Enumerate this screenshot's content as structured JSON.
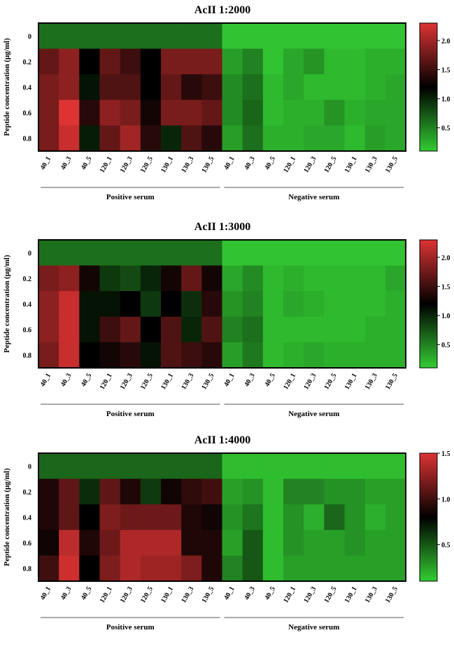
{
  "chart_data": [
    {
      "type": "heatmap",
      "title": "AcII 1:2000",
      "ylabel": "Peptide concentration (μg/ml)",
      "rows": [
        "0",
        "0.2",
        "0.4",
        "0.6",
        "0.8"
      ],
      "columns": [
        "40_1",
        "40_3",
        "40_5",
        "120_1",
        "120_3",
        "120_5",
        "130_1",
        "130_3",
        "130_5",
        "40_1",
        "40_3",
        "40_5",
        "120_1",
        "120_3",
        "120_5",
        "130_1",
        "130_3",
        "130_5"
      ],
      "groups": [
        "Positive serum",
        "Negative serum"
      ],
      "colormap": [
        "#33cc33",
        "#000000",
        "#dd3333"
      ],
      "clim": [
        0.1,
        2.3
      ],
      "cticks": [
        0.5,
        1.0,
        1.5,
        2.0
      ],
      "values": [
        [
          0.6,
          0.6,
          0.6,
          0.6,
          0.6,
          0.6,
          0.6,
          0.6,
          0.6,
          0.15,
          0.15,
          0.15,
          0.15,
          0.15,
          0.15,
          0.15,
          0.15,
          0.15
        ],
        [
          1.7,
          1.9,
          1.2,
          1.7,
          1.5,
          1.2,
          1.8,
          1.8,
          1.8,
          0.35,
          0.5,
          0.15,
          0.3,
          0.4,
          0.2,
          0.2,
          0.25,
          0.25
        ],
        [
          1.8,
          1.9,
          1.1,
          1.6,
          1.6,
          1.2,
          1.7,
          1.4,
          1.5,
          0.45,
          0.6,
          0.2,
          0.3,
          0.2,
          0.2,
          0.2,
          0.25,
          0.3
        ],
        [
          1.8,
          2.3,
          1.4,
          1.9,
          1.8,
          1.3,
          1.8,
          1.8,
          1.7,
          0.45,
          0.65,
          0.2,
          0.25,
          0.25,
          0.4,
          0.25,
          0.3,
          0.3
        ],
        [
          1.8,
          2.2,
          1.05,
          1.7,
          2.0,
          1.4,
          1.0,
          1.6,
          1.4,
          0.35,
          0.6,
          0.25,
          0.25,
          0.3,
          0.3,
          0.2,
          0.35,
          0.3
        ]
      ]
    },
    {
      "type": "heatmap",
      "title": "AcII 1:3000",
      "ylabel": "Peptide concentration (μg/ml)",
      "rows": [
        "0",
        "0.2",
        "0.4",
        "0.6",
        "0.8"
      ],
      "columns": [
        "40_1",
        "40_3",
        "40_5",
        "120_1",
        "120_3",
        "120_5",
        "130_1",
        "130_3",
        "130_5",
        "40_1",
        "40_3",
        "40_5",
        "120_1",
        "120_3",
        "120_5",
        "130_1",
        "130_3",
        "130_5"
      ],
      "groups": [
        "Positive serum",
        "Negative serum"
      ],
      "colormap": [
        "#33cc33",
        "#000000",
        "#dd3333"
      ],
      "clim": [
        0.1,
        2.3
      ],
      "cticks": [
        0.5,
        1.0,
        1.5,
        2.0
      ],
      "values": [
        [
          0.6,
          0.6,
          0.6,
          0.6,
          0.6,
          0.6,
          0.6,
          0.6,
          0.6,
          0.15,
          0.15,
          0.15,
          0.15,
          0.15,
          0.15,
          0.15,
          0.15,
          0.15
        ],
        [
          1.8,
          1.9,
          1.3,
          0.9,
          0.8,
          1.0,
          1.3,
          1.7,
          1.3,
          0.3,
          0.45,
          0.2,
          0.25,
          0.2,
          0.2,
          0.2,
          0.2,
          0.3
        ],
        [
          1.9,
          2.2,
          1.1,
          1.1,
          1.2,
          0.9,
          1.2,
          0.95,
          1.4,
          0.4,
          0.5,
          0.2,
          0.3,
          0.25,
          0.2,
          0.2,
          0.2,
          0.25
        ],
        [
          1.9,
          2.2,
          1.1,
          1.5,
          1.7,
          1.2,
          1.6,
          1.0,
          1.6,
          0.5,
          0.6,
          0.2,
          0.2,
          0.2,
          0.2,
          0.2,
          0.25,
          0.25
        ],
        [
          1.8,
          2.2,
          1.2,
          1.3,
          1.4,
          1.1,
          1.6,
          1.5,
          1.4,
          0.35,
          0.55,
          0.2,
          0.25,
          0.3,
          0.25,
          0.25,
          0.25,
          0.25
        ]
      ]
    },
    {
      "type": "heatmap",
      "title": "AcII 1:4000",
      "ylabel": "Peptide concentration (μg/ml)",
      "rows": [
        "0",
        "0.2",
        "0.4",
        "0.6",
        "0.8"
      ],
      "columns": [
        "40_1",
        "40_3",
        "40_5",
        "120_1",
        "120_3",
        "120_5",
        "130_1",
        "130_3",
        "130_5",
        "40_1",
        "40_3",
        "40_5",
        "120_1",
        "120_3",
        "120_5",
        "130_1",
        "130_3",
        "130_5"
      ],
      "groups": [
        "Positive serum",
        "Negative serum"
      ],
      "colormap": [
        "#33cc33",
        "#000000",
        "#dd3333"
      ],
      "clim": [
        0.1,
        1.5
      ],
      "cticks": [
        0.5,
        1.0,
        1.5
      ],
      "values": [
        [
          0.45,
          0.45,
          0.45,
          0.45,
          0.45,
          0.45,
          0.45,
          0.45,
          0.45,
          0.15,
          0.15,
          0.15,
          0.15,
          0.15,
          0.15,
          0.15,
          0.15,
          0.15
        ],
        [
          0.9,
          1.1,
          0.65,
          1.1,
          0.9,
          0.6,
          0.85,
          0.95,
          1.0,
          0.25,
          0.3,
          0.15,
          0.35,
          0.35,
          0.3,
          0.3,
          0.25,
          0.25
        ],
        [
          0.9,
          1.1,
          0.8,
          1.2,
          1.15,
          1.15,
          1.15,
          0.9,
          0.85,
          0.3,
          0.4,
          0.15,
          0.3,
          0.2,
          0.45,
          0.3,
          0.2,
          0.25
        ],
        [
          0.85,
          1.4,
          0.9,
          1.15,
          1.35,
          1.35,
          1.35,
          0.9,
          0.9,
          0.25,
          0.5,
          0.15,
          0.3,
          0.25,
          0.25,
          0.3,
          0.25,
          0.25
        ],
        [
          1.0,
          1.45,
          0.8,
          1.2,
          1.35,
          1.3,
          1.3,
          1.2,
          0.9,
          0.35,
          0.5,
          0.15,
          0.25,
          0.25,
          0.25,
          0.25,
          0.25,
          0.25
        ]
      ]
    }
  ]
}
